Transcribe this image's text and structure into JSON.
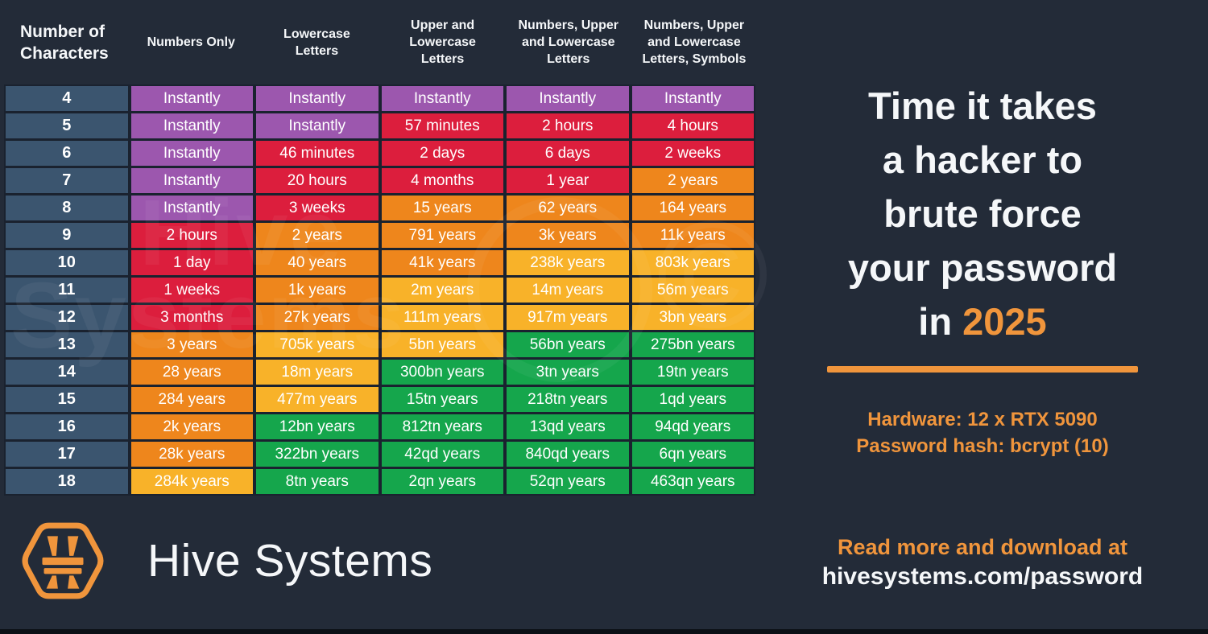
{
  "colors": {
    "background": "#232B38",
    "grid": "#1A222F",
    "rowHeader": "#3B556F",
    "purple": "#9C57AE",
    "red": "#DC1E3D",
    "orange": "#EE861C",
    "amber": "#F8B229",
    "green": "#15A64C",
    "accent": "#F0953C",
    "white": "#F5F7F9"
  },
  "table": {
    "column_headers": [
      "Number of Characters",
      "Numbers Only",
      "Lowercase Letters",
      "Upper and Lowercase Letters",
      "Numbers, Upper and Lowercase Letters",
      "Numbers, Upper and Lowercase Letters, Symbols"
    ],
    "rows": [
      {
        "chars": "4",
        "cells": [
          {
            "text": "Instantly",
            "level": "purple"
          },
          {
            "text": "Instantly",
            "level": "purple"
          },
          {
            "text": "Instantly",
            "level": "purple"
          },
          {
            "text": "Instantly",
            "level": "purple"
          },
          {
            "text": "Instantly",
            "level": "purple"
          }
        ]
      },
      {
        "chars": "5",
        "cells": [
          {
            "text": "Instantly",
            "level": "purple"
          },
          {
            "text": "Instantly",
            "level": "purple"
          },
          {
            "text": "57 minutes",
            "level": "red"
          },
          {
            "text": "2 hours",
            "level": "red"
          },
          {
            "text": "4 hours",
            "level": "red"
          }
        ]
      },
      {
        "chars": "6",
        "cells": [
          {
            "text": "Instantly",
            "level": "purple"
          },
          {
            "text": "46 minutes",
            "level": "red"
          },
          {
            "text": "2 days",
            "level": "red"
          },
          {
            "text": "6 days",
            "level": "red"
          },
          {
            "text": "2 weeks",
            "level": "red"
          }
        ]
      },
      {
        "chars": "7",
        "cells": [
          {
            "text": "Instantly",
            "level": "purple"
          },
          {
            "text": "20 hours",
            "level": "red"
          },
          {
            "text": "4 months",
            "level": "red"
          },
          {
            "text": "1 year",
            "level": "red"
          },
          {
            "text": "2 years",
            "level": "orange"
          }
        ]
      },
      {
        "chars": "8",
        "cells": [
          {
            "text": "Instantly",
            "level": "purple"
          },
          {
            "text": "3 weeks",
            "level": "red"
          },
          {
            "text": "15 years",
            "level": "orange"
          },
          {
            "text": "62 years",
            "level": "orange"
          },
          {
            "text": "164 years",
            "level": "orange"
          }
        ]
      },
      {
        "chars": "9",
        "cells": [
          {
            "text": "2 hours",
            "level": "red"
          },
          {
            "text": "2 years",
            "level": "orange"
          },
          {
            "text": "791 years",
            "level": "orange"
          },
          {
            "text": "3k years",
            "level": "orange"
          },
          {
            "text": "11k years",
            "level": "orange"
          }
        ]
      },
      {
        "chars": "10",
        "cells": [
          {
            "text": "1 day",
            "level": "red"
          },
          {
            "text": "40 years",
            "level": "orange"
          },
          {
            "text": "41k years",
            "level": "orange"
          },
          {
            "text": "238k years",
            "level": "amber"
          },
          {
            "text": "803k years",
            "level": "amber"
          }
        ]
      },
      {
        "chars": "11",
        "cells": [
          {
            "text": "1 weeks",
            "level": "red"
          },
          {
            "text": "1k years",
            "level": "orange"
          },
          {
            "text": "2m years",
            "level": "amber"
          },
          {
            "text": "14m years",
            "level": "amber"
          },
          {
            "text": "56m years",
            "level": "amber"
          }
        ]
      },
      {
        "chars": "12",
        "cells": [
          {
            "text": "3 months",
            "level": "red"
          },
          {
            "text": "27k years",
            "level": "orange"
          },
          {
            "text": "111m years",
            "level": "amber"
          },
          {
            "text": "917m years",
            "level": "amber"
          },
          {
            "text": "3bn years",
            "level": "amber"
          }
        ]
      },
      {
        "chars": "13",
        "cells": [
          {
            "text": "3 years",
            "level": "orange"
          },
          {
            "text": "705k years",
            "level": "amber"
          },
          {
            "text": "5bn years",
            "level": "amber"
          },
          {
            "text": "56bn years",
            "level": "green"
          },
          {
            "text": "275bn years",
            "level": "green"
          }
        ]
      },
      {
        "chars": "14",
        "cells": [
          {
            "text": "28 years",
            "level": "orange"
          },
          {
            "text": "18m years",
            "level": "amber"
          },
          {
            "text": "300bn years",
            "level": "green"
          },
          {
            "text": "3tn years",
            "level": "green"
          },
          {
            "text": "19tn years",
            "level": "green"
          }
        ]
      },
      {
        "chars": "15",
        "cells": [
          {
            "text": "284 years",
            "level": "orange"
          },
          {
            "text": "477m years",
            "level": "amber"
          },
          {
            "text": "15tn years",
            "level": "green"
          },
          {
            "text": "218tn years",
            "level": "green"
          },
          {
            "text": "1qd years",
            "level": "green"
          }
        ]
      },
      {
        "chars": "16",
        "cells": [
          {
            "text": "2k years",
            "level": "orange"
          },
          {
            "text": "12bn years",
            "level": "green"
          },
          {
            "text": "812tn years",
            "level": "green"
          },
          {
            "text": "13qd years",
            "level": "green"
          },
          {
            "text": "94qd years",
            "level": "green"
          }
        ]
      },
      {
        "chars": "17",
        "cells": [
          {
            "text": "28k years",
            "level": "orange"
          },
          {
            "text": "322bn years",
            "level": "green"
          },
          {
            "text": "42qd years",
            "level": "green"
          },
          {
            "text": "840qd years",
            "level": "green"
          },
          {
            "text": "6qn years",
            "level": "green"
          }
        ]
      },
      {
        "chars": "18",
        "cells": [
          {
            "text": "284k years",
            "level": "amber"
          },
          {
            "text": "8tn years",
            "level": "green"
          },
          {
            "text": "2qn years",
            "level": "green"
          },
          {
            "text": "52qn years",
            "level": "green"
          },
          {
            "text": "463qn years",
            "level": "green"
          }
        ]
      }
    ]
  },
  "chart_data": {
    "type": "table",
    "title": "Time it takes a hacker to brute force your password in 2025",
    "row_label": "Number of Characters",
    "row_categories": [
      4,
      5,
      6,
      7,
      8,
      9,
      10,
      11,
      12,
      13,
      14,
      15,
      16,
      17,
      18
    ],
    "columns": [
      "Numbers Only",
      "Lowercase Letters",
      "Upper and Lowercase Letters",
      "Numbers, Upper and Lowercase Letters",
      "Numbers, Upper and Lowercase Letters, Symbols"
    ],
    "values": [
      [
        "Instantly",
        "Instantly",
        "Instantly",
        "Instantly",
        "Instantly"
      ],
      [
        "Instantly",
        "Instantly",
        "57 minutes",
        "2 hours",
        "4 hours"
      ],
      [
        "Instantly",
        "46 minutes",
        "2 days",
        "6 days",
        "2 weeks"
      ],
      [
        "Instantly",
        "20 hours",
        "4 months",
        "1 year",
        "2 years"
      ],
      [
        "Instantly",
        "3 weeks",
        "15 years",
        "62 years",
        "164 years"
      ],
      [
        "2 hours",
        "2 years",
        "791 years",
        "3k years",
        "11k years"
      ],
      [
        "1 day",
        "40 years",
        "41k years",
        "238k years",
        "803k years"
      ],
      [
        "1 weeks",
        "1k years",
        "2m years",
        "14m years",
        "56m years"
      ],
      [
        "3 months",
        "27k years",
        "111m years",
        "917m years",
        "3bn years"
      ],
      [
        "3 years",
        "705k years",
        "5bn years",
        "56bn years",
        "275bn years"
      ],
      [
        "28 years",
        "18m years",
        "300bn years",
        "3tn years",
        "19tn years"
      ],
      [
        "284 years",
        "477m years",
        "15tn years",
        "218tn years",
        "1qd years"
      ],
      [
        "2k years",
        "12bn years",
        "812tn years",
        "13qd years",
        "94qd years"
      ],
      [
        "28k years",
        "322bn years",
        "42qd years",
        "840qd years",
        "6qn years"
      ],
      [
        "284k years",
        "8tn years",
        "2qn years",
        "52qn years",
        "463qn years"
      ]
    ],
    "notes": "Hardware: 12 x RTX 5090 — Password hash: bcrypt (10)"
  },
  "watermark": {
    "line1": "Hive",
    "line2": "Systems",
    "copyright": "©"
  },
  "right_panel": {
    "title_lines": [
      "Time it takes",
      "a hacker to",
      "brute force",
      "your password"
    ],
    "title_last_prefix": "in ",
    "title_year": "2025",
    "hardware_line1": "Hardware: 12 x RTX 5090",
    "hardware_line2": "Password hash: bcrypt (10)"
  },
  "footer": {
    "brand": "Hive Systems",
    "read_more_line1": "Read more and download at",
    "read_more_line2": "hivesystems.com/password"
  }
}
